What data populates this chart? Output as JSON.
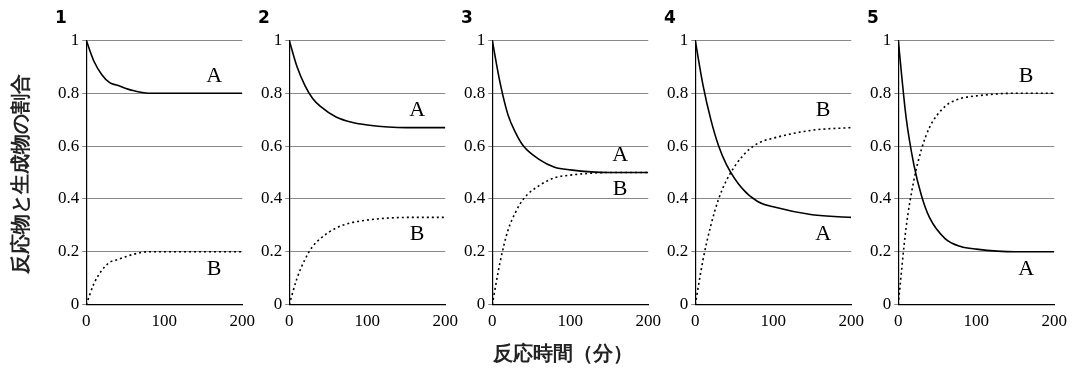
{
  "chart_data": [
    {
      "type": "line",
      "title": "1",
      "ylabel": "反応物と生成物の割合",
      "x": [
        0,
        10,
        20,
        30,
        40,
        60,
        80,
        100,
        150,
        200
      ],
      "xlim": [
        0,
        200
      ],
      "xticks": [
        0,
        100,
        200
      ],
      "ylim": [
        0,
        1
      ],
      "yticks": [
        0,
        0.2,
        0.4,
        0.6,
        0.8,
        1
      ],
      "grid": "y",
      "legend": false,
      "marker": "none",
      "series": [
        {
          "name": "A",
          "color": "#000000",
          "line_style": "solid",
          "values": [
            1,
            0.92,
            0.87,
            0.84,
            0.83,
            0.81,
            0.8,
            0.8,
            0.8,
            0.8
          ]
        },
        {
          "name": "B",
          "color": "#000000",
          "line_style": "dotted",
          "values": [
            0,
            0.08,
            0.13,
            0.16,
            0.17,
            0.19,
            0.2,
            0.2,
            0.2,
            0.2
          ]
        }
      ]
    },
    {
      "type": "line",
      "title": "2",
      "x": [
        0,
        10,
        20,
        30,
        40,
        60,
        80,
        100,
        150,
        200
      ],
      "xlim": [
        0,
        200
      ],
      "xticks": [
        0,
        100,
        200
      ],
      "ylim": [
        0,
        1
      ],
      "yticks": [
        0,
        0.2,
        0.4,
        0.6,
        0.8,
        1
      ],
      "grid": "y",
      "legend": false,
      "marker": "none",
      "series": [
        {
          "name": "A",
          "color": "#000000",
          "line_style": "solid",
          "values": [
            1,
            0.9,
            0.83,
            0.78,
            0.75,
            0.71,
            0.69,
            0.68,
            0.67,
            0.67
          ]
        },
        {
          "name": "B",
          "color": "#000000",
          "line_style": "dotted",
          "values": [
            0,
            0.1,
            0.17,
            0.22,
            0.25,
            0.29,
            0.31,
            0.32,
            0.33,
            0.33
          ]
        }
      ]
    },
    {
      "type": "line",
      "title": "3",
      "xlabel": "反応時間（分）",
      "x": [
        0,
        10,
        20,
        30,
        40,
        60,
        80,
        100,
        150,
        200
      ],
      "xlim": [
        0,
        200
      ],
      "xticks": [
        0,
        100,
        200
      ],
      "ylim": [
        0,
        1
      ],
      "yticks": [
        0,
        0.2,
        0.4,
        0.6,
        0.8,
        1
      ],
      "grid": "y",
      "legend": false,
      "marker": "none",
      "series": [
        {
          "name": "A",
          "color": "#000000",
          "line_style": "solid",
          "values": [
            1,
            0.84,
            0.72,
            0.65,
            0.6,
            0.55,
            0.52,
            0.51,
            0.5,
            0.5
          ]
        },
        {
          "name": "B",
          "color": "#000000",
          "line_style": "dotted",
          "values": [
            0,
            0.16,
            0.28,
            0.35,
            0.4,
            0.45,
            0.48,
            0.49,
            0.5,
            0.5
          ]
        }
      ]
    },
    {
      "type": "line",
      "title": "4",
      "x": [
        0,
        10,
        20,
        30,
        40,
        60,
        80,
        100,
        150,
        200
      ],
      "xlim": [
        0,
        200
      ],
      "xticks": [
        0,
        100,
        200
      ],
      "ylim": [
        0,
        1
      ],
      "yticks": [
        0,
        0.2,
        0.4,
        0.6,
        0.8,
        1
      ],
      "grid": "y",
      "legend": false,
      "marker": "none",
      "series": [
        {
          "name": "A",
          "color": "#000000",
          "line_style": "solid",
          "values": [
            1,
            0.83,
            0.7,
            0.6,
            0.53,
            0.44,
            0.39,
            0.37,
            0.34,
            0.33
          ]
        },
        {
          "name": "B",
          "color": "#000000",
          "line_style": "dotted",
          "values": [
            0,
            0.17,
            0.3,
            0.4,
            0.47,
            0.56,
            0.61,
            0.63,
            0.66,
            0.67
          ]
        }
      ]
    },
    {
      "type": "line",
      "title": "5",
      "x": [
        0,
        10,
        20,
        30,
        40,
        60,
        80,
        100,
        150,
        200
      ],
      "xlim": [
        0,
        200
      ],
      "xticks": [
        0,
        100,
        200
      ],
      "ylim": [
        0,
        1
      ],
      "yticks": [
        0,
        0.2,
        0.4,
        0.6,
        0.8,
        1
      ],
      "grid": "y",
      "legend": false,
      "marker": "none",
      "series": [
        {
          "name": "A",
          "color": "#000000",
          "line_style": "solid",
          "values": [
            1,
            0.71,
            0.53,
            0.41,
            0.33,
            0.25,
            0.22,
            0.21,
            0.2,
            0.2
          ]
        },
        {
          "name": "B",
          "color": "#000000",
          "line_style": "dotted",
          "values": [
            0,
            0.29,
            0.47,
            0.59,
            0.67,
            0.75,
            0.78,
            0.79,
            0.8,
            0.8
          ]
        }
      ]
    }
  ]
}
